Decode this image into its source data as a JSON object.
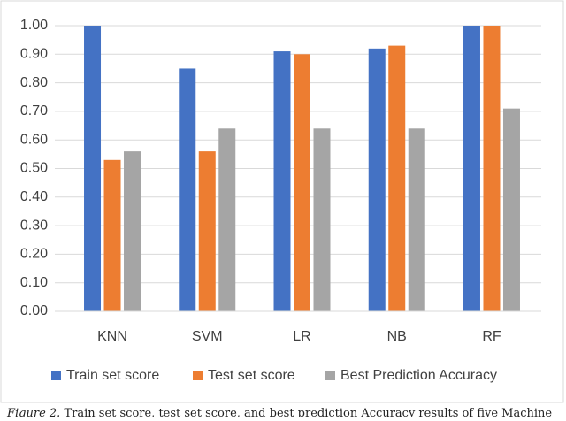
{
  "chart_data": {
    "type": "bar",
    "categories": [
      "KNN",
      "SVM",
      "LR",
      "NB",
      "RF"
    ],
    "series": [
      {
        "name": "Train set score",
        "color": "#4472c4",
        "values": [
          1.0,
          0.85,
          0.91,
          0.92,
          1.0
        ]
      },
      {
        "name": "Test set score",
        "color": "#ed7d31",
        "values": [
          0.53,
          0.56,
          0.9,
          0.93,
          1.0
        ]
      },
      {
        "name": "Best Prediction Accuracy",
        "color": "#a5a5a5",
        "values": [
          0.56,
          0.64,
          0.64,
          0.64,
          0.71
        ]
      }
    ],
    "ylim": [
      0,
      1
    ],
    "yticks": [
      {
        "value": 0,
        "label": "0.00"
      },
      {
        "value": 0.1,
        "label": "0.10"
      },
      {
        "value": 0.2,
        "label": "0.20"
      },
      {
        "value": 0.3,
        "label": "0.30"
      },
      {
        "value": 0.4,
        "label": "0.40"
      },
      {
        "value": 0.5,
        "label": "0.50"
      },
      {
        "value": 0.6,
        "label": "0.60"
      },
      {
        "value": 0.7,
        "label": "0.70"
      },
      {
        "value": 0.8,
        "label": "0.80"
      },
      {
        "value": 0.9,
        "label": "0.90"
      },
      {
        "value": 1,
        "label": "1.00"
      }
    ],
    "grid": true,
    "legend": "bottom",
    "caption": {
      "label": "Figure 2.",
      "text": "Train set score, test set score, and best prediction Accuracy results of five Machine"
    }
  }
}
